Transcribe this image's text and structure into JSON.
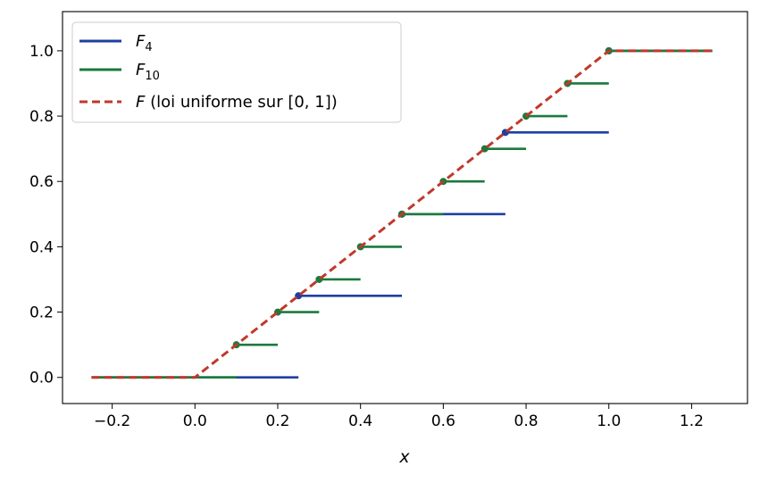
{
  "chart_data": {
    "type": "line",
    "xlabel": "x",
    "ylabel": "",
    "xlim": [
      -0.32,
      1.335
    ],
    "ylim": [
      -0.08,
      1.12
    ],
    "xticks": [
      -0.2,
      0.0,
      0.2,
      0.4,
      0.6,
      0.8,
      1.0,
      1.2
    ],
    "xtick_labels": [
      "−0.2",
      "0.0",
      "0.2",
      "0.4",
      "0.6",
      "0.8",
      "1.0",
      "1.2"
    ],
    "yticks": [
      0.0,
      0.2,
      0.4,
      0.6,
      0.8,
      1.0
    ],
    "ytick_labels": [
      "0.0",
      "0.2",
      "0.4",
      "0.6",
      "0.8",
      "1.0"
    ],
    "grid": false,
    "legend_position": "top-left",
    "series": [
      {
        "name": "F4",
        "legend_main": "F",
        "legend_sub": "4",
        "style": "step",
        "color": "#1f3fa0",
        "steps": [
          {
            "x0": -0.25,
            "x1": 0.25,
            "y": 0.0
          },
          {
            "x0": 0.25,
            "x1": 0.5,
            "y": 0.25
          },
          {
            "x0": 0.5,
            "x1": 0.75,
            "y": 0.5
          },
          {
            "x0": 0.75,
            "x1": 1.0,
            "y": 0.75
          },
          {
            "x0": 1.0,
            "x1": 1.25,
            "y": 1.0
          }
        ],
        "points": [
          [
            0.25,
            0.25
          ],
          [
            0.5,
            0.5
          ],
          [
            0.75,
            0.75
          ],
          [
            1.0,
            1.0
          ]
        ]
      },
      {
        "name": "F10",
        "legend_main": "F",
        "legend_sub": "10",
        "style": "step",
        "color": "#1a7a3c",
        "steps": [
          {
            "x0": -0.25,
            "x1": 0.1,
            "y": 0.0
          },
          {
            "x0": 0.1,
            "x1": 0.2,
            "y": 0.1
          },
          {
            "x0": 0.2,
            "x1": 0.3,
            "y": 0.2
          },
          {
            "x0": 0.3,
            "x1": 0.4,
            "y": 0.3
          },
          {
            "x0": 0.4,
            "x1": 0.5,
            "y": 0.4
          },
          {
            "x0": 0.5,
            "x1": 0.6,
            "y": 0.5
          },
          {
            "x0": 0.6,
            "x1": 0.7,
            "y": 0.6
          },
          {
            "x0": 0.7,
            "x1": 0.8,
            "y": 0.7
          },
          {
            "x0": 0.8,
            "x1": 0.9,
            "y": 0.8
          },
          {
            "x0": 0.9,
            "x1": 1.0,
            "y": 0.9
          },
          {
            "x0": 1.0,
            "x1": 1.25,
            "y": 1.0
          }
        ],
        "points": [
          [
            0.1,
            0.1
          ],
          [
            0.2,
            0.2
          ],
          [
            0.3,
            0.3
          ],
          [
            0.4,
            0.4
          ],
          [
            0.5,
            0.5
          ],
          [
            0.6,
            0.6
          ],
          [
            0.7,
            0.7
          ],
          [
            0.8,
            0.8
          ],
          [
            0.9,
            0.9
          ],
          [
            1.0,
            1.0
          ]
        ]
      },
      {
        "name": "F (loi uniforme sur [0,1])",
        "legend_main": "F",
        "legend_rest": " (loi uniforme sur [0, 1])",
        "style": "dashed",
        "color": "#c0392b",
        "x": [
          -0.25,
          0.0,
          1.0,
          1.25
        ],
        "y": [
          0.0,
          0.0,
          1.0,
          1.0
        ]
      }
    ]
  }
}
